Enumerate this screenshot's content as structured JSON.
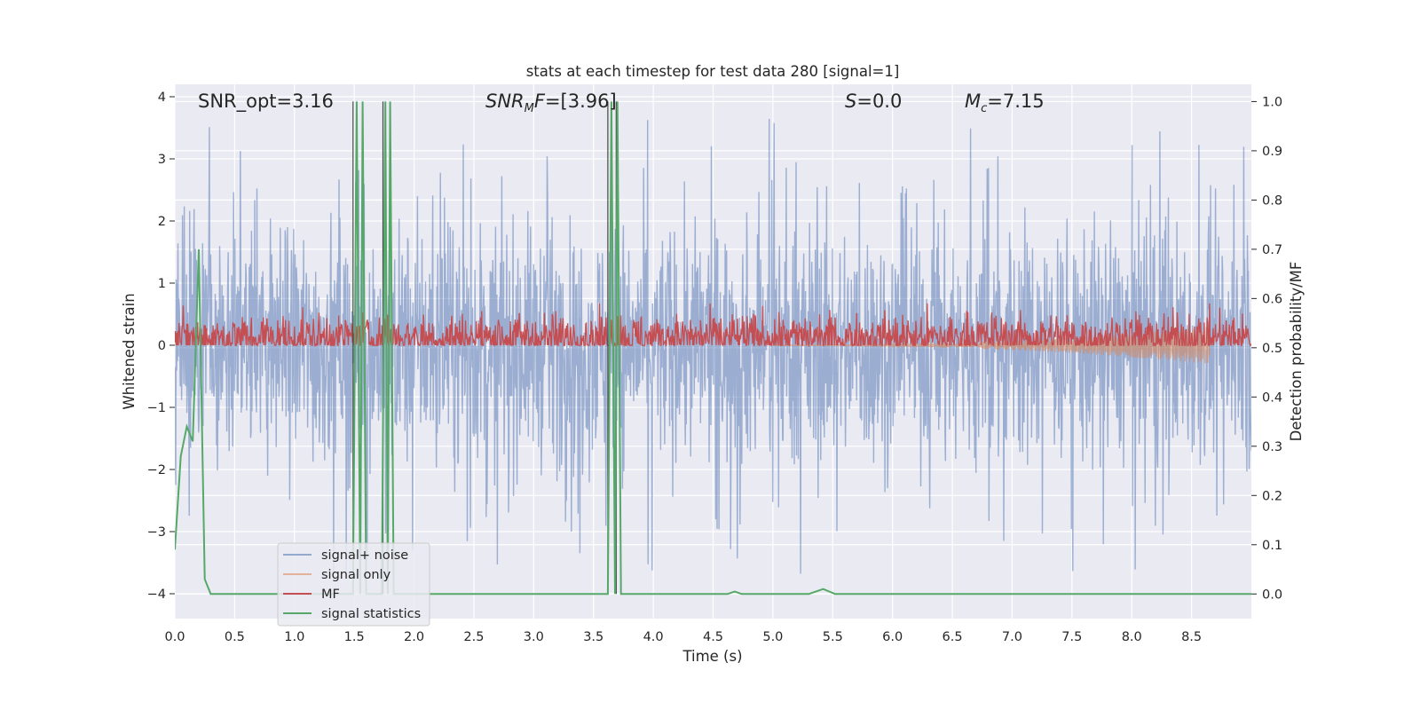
{
  "chart_data": {
    "type": "line",
    "title": "stats at each timestep for test data 280 [signal=1]",
    "xlabel": "Time (s)",
    "ylabel_left": "Whitened strain",
    "ylabel_right": "Detection probability/MF",
    "xlim": [
      0.0,
      9.0
    ],
    "ylim_left": [
      -4.4,
      4.2
    ],
    "ylim_right": [
      -0.05,
      1.035
    ],
    "x_ticks": [
      "0.0",
      "0.5",
      "1.0",
      "1.5",
      "2.0",
      "2.5",
      "3.0",
      "3.5",
      "4.0",
      "4.5",
      "5.0",
      "5.5",
      "6.0",
      "6.5",
      "7.0",
      "7.5",
      "8.0",
      "8.5"
    ],
    "y_ticks_left": [
      "4",
      "3",
      "2",
      "1",
      "0",
      "−1",
      "−2",
      "−3",
      "−4"
    ],
    "y_ticks_right": [
      "1.0",
      "0.9",
      "0.8",
      "0.7",
      "0.6",
      "0.5",
      "0.4",
      "0.3",
      "0.2",
      "0.1",
      "0.0"
    ],
    "grid": true,
    "legend_position": "bottom-left",
    "annotations": {
      "snr_opt": "SNR_opt=3.16",
      "snr_mf": "=[3.96]",
      "s_value": "=0.0",
      "mc_value": "=7.15"
    },
    "series": [
      {
        "name": "signal+ noise",
        "color": "#4c72b0",
        "axis": "left",
        "kind": "noise",
        "x_range": [
          0,
          9
        ],
        "mean": 0,
        "std": 0.95,
        "peak_max": 3.8,
        "peak_min": -3.8
      },
      {
        "name": "signal only",
        "color": "#dd8452",
        "axis": "left",
        "kind": "chirp",
        "x_range": [
          5.0,
          8.65
        ],
        "end_amplitude": 0.3
      },
      {
        "name": "MF",
        "color": "#c44e52",
        "axis": "right",
        "kind": "noise",
        "x_range": [
          0,
          9
        ],
        "mean": 0.52,
        "std": 0.025
      },
      {
        "name": "signal statistics",
        "color": "#55a868",
        "axis": "right",
        "kind": "line",
        "points": [
          [
            0.0,
            0.09
          ],
          [
            0.05,
            0.28
          ],
          [
            0.1,
            0.34
          ],
          [
            0.15,
            0.31
          ],
          [
            0.2,
            0.7
          ],
          [
            0.25,
            0.03
          ],
          [
            0.3,
            0.0
          ],
          [
            1.49,
            0.0
          ],
          [
            1.52,
            1.0
          ],
          [
            1.55,
            0.0
          ],
          [
            1.57,
            1.0
          ],
          [
            1.6,
            0.0
          ],
          [
            1.73,
            0.0
          ],
          [
            1.76,
            1.0
          ],
          [
            1.78,
            0.0
          ],
          [
            1.8,
            1.0
          ],
          [
            1.83,
            0.0
          ],
          [
            3.62,
            0.0
          ],
          [
            3.65,
            1.0
          ],
          [
            3.68,
            0.0
          ],
          [
            3.7,
            1.0
          ],
          [
            3.73,
            0.0
          ],
          [
            4.62,
            0.0
          ],
          [
            4.68,
            0.005
          ],
          [
            4.74,
            0.0
          ],
          [
            5.3,
            0.0
          ],
          [
            5.42,
            0.01
          ],
          [
            5.52,
            0.0
          ],
          [
            9.0,
            0.0
          ]
        ]
      }
    ],
    "vertical_markers": [
      1.49,
      1.74,
      3.62,
      3.69
    ]
  }
}
